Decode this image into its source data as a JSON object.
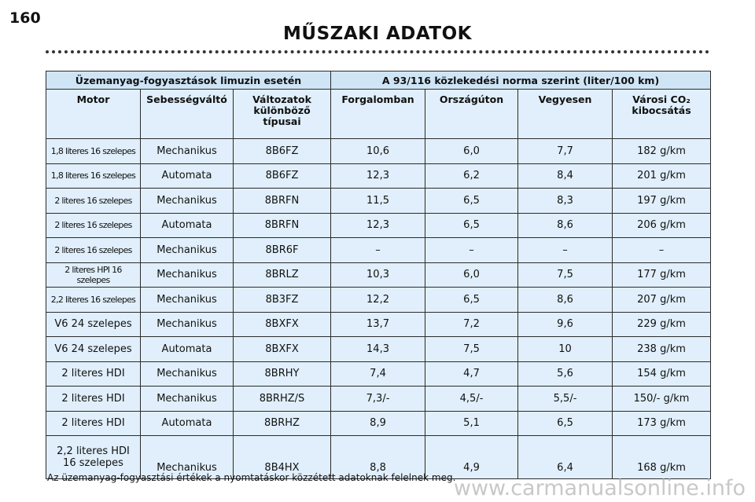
{
  "page_number": "160",
  "title": "MŰSZAKI ADATOK",
  "table": {
    "group_headers": [
      "Üzemanyag-fogyasztások limuzin esetén",
      "A 93/116 közlekedési norma szerint (liter/100 km)"
    ],
    "headers": [
      "Motor",
      "Sebességváltó",
      "Változatok\nkülönböző\ntípusai",
      "Forgalomban",
      "Országúton",
      "Vegyesen",
      "Városi CO₂\nkibocsátás"
    ],
    "rows": [
      [
        "1,8 literes 16 szelepes",
        "Mechanikus",
        "8B6FZ",
        "10,6",
        "6,0",
        "7,7",
        "182 g/km"
      ],
      [
        "1,8 literes 16 szelepes",
        "Automata",
        "8B6FZ",
        "12,3",
        "6,2",
        "8,4",
        "201 g/km"
      ],
      [
        "2 literes 16 szelepes",
        "Mechanikus",
        "8BRFN",
        "11,5",
        "6,5",
        "8,3",
        "197 g/km"
      ],
      [
        "2 literes 16 szelepes",
        "Automata",
        "8BRFN",
        "12,3",
        "6,5",
        "8,6",
        "206 g/km"
      ],
      [
        "2 literes 16 szelepes",
        "Mechanikus",
        "8BR6F",
        "–",
        "–",
        "–",
        "–"
      ],
      [
        "2 literes HPI 16 szelepes",
        "Mechanikus",
        "8BRLZ",
        "10,3",
        "6,0",
        "7,5",
        "177 g/km"
      ],
      [
        "2,2 literes 16 szelepes",
        "Mechanikus",
        "8B3FZ",
        "12,2",
        "6,5",
        "8,6",
        "207 g/km"
      ],
      [
        "V6 24 szelepes",
        "Mechanikus",
        "8BXFX",
        "13,7",
        "7,2",
        "9,6",
        "229 g/km"
      ],
      [
        "V6 24 szelepes",
        "Automata",
        "8BXFX",
        "14,3",
        "7,5",
        "10",
        "238 g/km"
      ],
      [
        "2 literes HDI",
        "Mechanikus",
        "8BRHY",
        "7,4",
        "4,7",
        "5,6",
        "154 g/km"
      ],
      [
        "2 literes HDI",
        "Mechanikus",
        "8BRHZ/S",
        "7,3/-",
        "4,5/-",
        "5,5/-",
        "150/- g/km"
      ],
      [
        "2 literes HDI",
        "Automata",
        "8BRHZ",
        "8,9",
        "5,1",
        "6,5",
        "173 g/km"
      ],
      [
        "2,2 literes HDI\n16 szelepes",
        "Mechanikus",
        "8B4HX",
        "8,8",
        "4,9",
        "6,4",
        "168 g/km"
      ]
    ]
  },
  "footnote": "Az üzemanyag-fogyasztási értékek a nyomtatáskor közzétett adatoknak felelnek meg.",
  "watermark": "www.carmanualsonline.info"
}
